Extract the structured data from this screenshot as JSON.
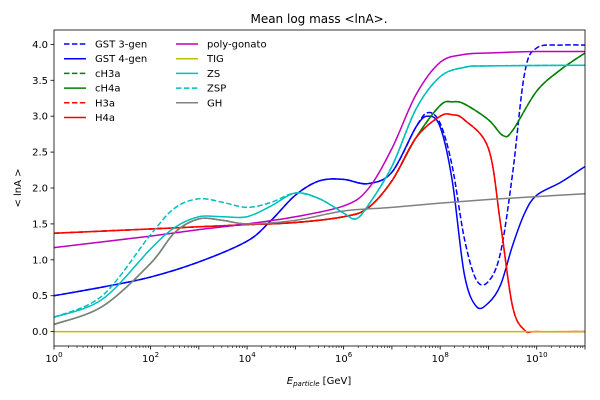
{
  "chart_data": {
    "type": "line",
    "title": "Mean log mass <lnA>.",
    "xlabel_main": "E",
    "xlabel_sub": "particle",
    "xlabel_unit": " [GeV]",
    "ylabel": "< lnA >",
    "xscale": "log",
    "xlim": [
      1,
      100000000000.0
    ],
    "ylim": [
      -0.2,
      4.2
    ],
    "x_ticks": [
      {
        "value": 1,
        "base": "10",
        "exp": "0"
      },
      {
        "value": 100,
        "base": "10",
        "exp": "2"
      },
      {
        "value": 10000,
        "base": "10",
        "exp": "4"
      },
      {
        "value": 1000000,
        "base": "10",
        "exp": "6"
      },
      {
        "value": 100000000,
        "base": "10",
        "exp": "8"
      },
      {
        "value": 10000000000,
        "base": "10",
        "exp": "10"
      }
    ],
    "y_ticks": [
      "0.0",
      "0.5",
      "1.0",
      "1.5",
      "2.0",
      "2.5",
      "3.0",
      "3.5",
      "4.0"
    ],
    "grid": false,
    "legend_placement": "top-left",
    "x": [
      1,
      100,
      10000,
      1000000,
      100000000,
      10000000000,
      100000000000
    ],
    "series": [
      {
        "name": "GST 3-gen",
        "color": "#0000ff",
        "dash": "dashed",
        "points": [
          [
            1,
            0.5
          ],
          [
            10,
            0.62
          ],
          [
            100,
            0.76
          ],
          [
            1000,
            0.97
          ],
          [
            10000,
            1.26
          ],
          [
            31600,
            1.55
          ],
          [
            100000,
            1.9
          ],
          [
            316000,
            2.1
          ],
          [
            1000000,
            2.12
          ],
          [
            3160000,
            2.06
          ],
          [
            10000000,
            2.22
          ],
          [
            31600000,
            2.85
          ],
          [
            56200000,
            3.05
          ],
          [
            100000000,
            2.9
          ],
          [
            178000000,
            2.3
          ],
          [
            316000000,
            1.3
          ],
          [
            562000000,
            0.72
          ],
          [
            1000000000,
            0.7
          ],
          [
            1780000000,
            1.1
          ],
          [
            3160000000,
            2.2
          ],
          [
            5620000000,
            3.6
          ],
          [
            10000000000,
            3.95
          ],
          [
            31600000000,
            3.99
          ],
          [
            100000000000,
            3.99
          ]
        ]
      },
      {
        "name": "GST 4-gen",
        "color": "#0000ff",
        "dash": "solid",
        "points": [
          [
            1,
            0.5
          ],
          [
            10,
            0.62
          ],
          [
            100,
            0.76
          ],
          [
            1000,
            0.97
          ],
          [
            10000,
            1.26
          ],
          [
            31600,
            1.55
          ],
          [
            100000,
            1.9
          ],
          [
            316000,
            2.1
          ],
          [
            1000000,
            2.12
          ],
          [
            3160000,
            2.06
          ],
          [
            10000000,
            2.22
          ],
          [
            31600000,
            2.85
          ],
          [
            56200000,
            3.0
          ],
          [
            100000000,
            2.85
          ],
          [
            178000000,
            2.1
          ],
          [
            316000000,
            0.8
          ],
          [
            562000000,
            0.35
          ],
          [
            1000000000,
            0.4
          ],
          [
            1780000000,
            0.65
          ],
          [
            3160000000,
            1.2
          ],
          [
            5620000000,
            1.65
          ],
          [
            10000000000,
            1.9
          ],
          [
            31600000000,
            2.08
          ],
          [
            100000000000,
            2.3
          ]
        ]
      },
      {
        "name": "cH3a",
        "color": "#008000",
        "dash": "dashed",
        "points": [
          [
            1,
            1.37
          ],
          [
            10,
            1.4
          ],
          [
            100,
            1.43
          ],
          [
            1000,
            1.46
          ],
          [
            10000,
            1.49
          ],
          [
            100000,
            1.52
          ],
          [
            1000000,
            1.6
          ],
          [
            3160000,
            1.72
          ],
          [
            10000000,
            2.1
          ],
          [
            31600000,
            2.7
          ],
          [
            100000000,
            3.15
          ],
          [
            178000000,
            3.2
          ],
          [
            316000000,
            3.17
          ],
          [
            1000000000,
            2.95
          ],
          [
            2000000000,
            2.73
          ],
          [
            3160000000,
            2.8
          ],
          [
            10000000000,
            3.35
          ],
          [
            31600000000,
            3.65
          ],
          [
            100000000000,
            3.88
          ]
        ]
      },
      {
        "name": "cH4a",
        "color": "#008000",
        "dash": "solid",
        "points": [
          [
            1,
            0.1
          ],
          [
            10,
            0.35
          ],
          [
            100,
            0.95
          ],
          [
            316,
            1.38
          ],
          [
            1000,
            1.57
          ],
          [
            3160,
            1.55
          ],
          [
            10000,
            1.5
          ],
          [
            100000,
            1.52
          ],
          [
            1000000,
            1.6
          ],
          [
            3160000,
            1.72
          ],
          [
            10000000,
            2.1
          ],
          [
            31600000,
            2.7
          ],
          [
            100000000,
            3.15
          ],
          [
            178000000,
            3.2
          ],
          [
            316000000,
            3.17
          ],
          [
            1000000000,
            2.95
          ],
          [
            2000000000,
            2.73
          ],
          [
            3160000000,
            2.8
          ],
          [
            10000000000,
            3.35
          ],
          [
            31600000000,
            3.65
          ],
          [
            100000000000,
            3.88
          ]
        ]
      },
      {
        "name": "H3a",
        "color": "#ff0000",
        "dash": "dashed",
        "points": [
          [
            1,
            1.37
          ],
          [
            10,
            1.4
          ],
          [
            100,
            1.43
          ],
          [
            1000,
            1.46
          ],
          [
            10000,
            1.49
          ],
          [
            100000,
            1.52
          ],
          [
            1000000,
            1.6
          ],
          [
            3160000,
            1.72
          ],
          [
            10000000,
            2.1
          ],
          [
            31600000,
            2.7
          ],
          [
            100000000,
            3.0
          ],
          [
            178000000,
            3.02
          ],
          [
            316000000,
            2.95
          ],
          [
            1000000000,
            2.55
          ],
          [
            1780000000,
            1.5
          ],
          [
            3160000000,
            0.35
          ],
          [
            5620000000,
            0.02
          ],
          [
            10000000000,
            0.0
          ],
          [
            100000000000,
            0.0
          ]
        ]
      },
      {
        "name": "H4a",
        "color": "#ff0000",
        "dash": "solid",
        "points": [
          [
            1,
            1.37
          ],
          [
            10,
            1.4
          ],
          [
            100,
            1.43
          ],
          [
            1000,
            1.46
          ],
          [
            10000,
            1.49
          ],
          [
            100000,
            1.52
          ],
          [
            1000000,
            1.6
          ],
          [
            3160000,
            1.72
          ],
          [
            10000000,
            2.1
          ],
          [
            31600000,
            2.7
          ],
          [
            100000000,
            3.0
          ],
          [
            178000000,
            3.02
          ],
          [
            316000000,
            2.95
          ],
          [
            1000000000,
            2.55
          ],
          [
            1780000000,
            1.5
          ],
          [
            3160000000,
            0.35
          ],
          [
            5620000000,
            0.02
          ],
          [
            10000000000,
            0.0
          ],
          [
            100000000000,
            0.0
          ]
        ]
      },
      {
        "name": "poly-gonato",
        "color": "#bf00bf",
        "dash": "solid",
        "points": [
          [
            1,
            1.17
          ],
          [
            10,
            1.25
          ],
          [
            100,
            1.33
          ],
          [
            1000,
            1.42
          ],
          [
            10000,
            1.5
          ],
          [
            100000,
            1.6
          ],
          [
            1000000,
            1.75
          ],
          [
            3160000,
            1.98
          ],
          [
            10000000,
            2.55
          ],
          [
            31600000,
            3.3
          ],
          [
            100000000,
            3.75
          ],
          [
            316000000,
            3.86
          ],
          [
            1000000000,
            3.88
          ],
          [
            10000000000,
            3.9
          ],
          [
            100000000000,
            3.9
          ]
        ]
      },
      {
        "name": "TIG",
        "color": "#bfbf00",
        "dash": "solid",
        "points": [
          [
            1,
            0.0
          ],
          [
            100000000000,
            0.0
          ]
        ]
      },
      {
        "name": "ZS",
        "color": "#00bfbf",
        "dash": "solid",
        "points": [
          [
            1,
            0.2
          ],
          [
            10,
            0.45
          ],
          [
            100,
            1.15
          ],
          [
            316,
            1.45
          ],
          [
            1000,
            1.6
          ],
          [
            3160,
            1.6
          ],
          [
            10000,
            1.6
          ],
          [
            31600,
            1.75
          ],
          [
            100000,
            1.93
          ],
          [
            316000,
            1.85
          ],
          [
            1000000,
            1.65
          ],
          [
            1780000,
            1.57
          ],
          [
            3160000,
            1.75
          ],
          [
            10000000,
            2.3
          ],
          [
            31600000,
            3.1
          ],
          [
            100000000,
            3.55
          ],
          [
            316000000,
            3.68
          ],
          [
            1000000000,
            3.7
          ],
          [
            100000000000,
            3.71
          ]
        ]
      },
      {
        "name": "ZSP",
        "color": "#00bfbf",
        "dash": "dashed",
        "points": [
          [
            1,
            0.2
          ],
          [
            10,
            0.5
          ],
          [
            100,
            1.35
          ],
          [
            316,
            1.72
          ],
          [
            1000,
            1.85
          ],
          [
            3160,
            1.8
          ],
          [
            10000,
            1.73
          ],
          [
            31600,
            1.8
          ],
          [
            100000,
            1.93
          ],
          [
            316000,
            1.85
          ],
          [
            1000000,
            1.65
          ],
          [
            1780000,
            1.57
          ],
          [
            3160000,
            1.75
          ],
          [
            10000000,
            2.3
          ],
          [
            31600000,
            3.1
          ],
          [
            100000000,
            3.55
          ],
          [
            316000000,
            3.68
          ],
          [
            1000000000,
            3.7
          ],
          [
            100000000000,
            3.71
          ]
        ]
      },
      {
        "name": "GH",
        "color": "#808080",
        "dash": "solid",
        "points": [
          [
            1,
            0.1
          ],
          [
            10,
            0.35
          ],
          [
            100,
            0.95
          ],
          [
            316,
            1.38
          ],
          [
            1000,
            1.57
          ],
          [
            3160,
            1.55
          ],
          [
            10000,
            1.5
          ],
          [
            100000,
            1.55
          ],
          [
            1000000,
            1.68
          ],
          [
            10000000,
            1.73
          ],
          [
            100000000,
            1.79
          ],
          [
            1000000000,
            1.84
          ],
          [
            10000000000,
            1.88
          ],
          [
            100000000000,
            1.92
          ]
        ]
      }
    ]
  }
}
